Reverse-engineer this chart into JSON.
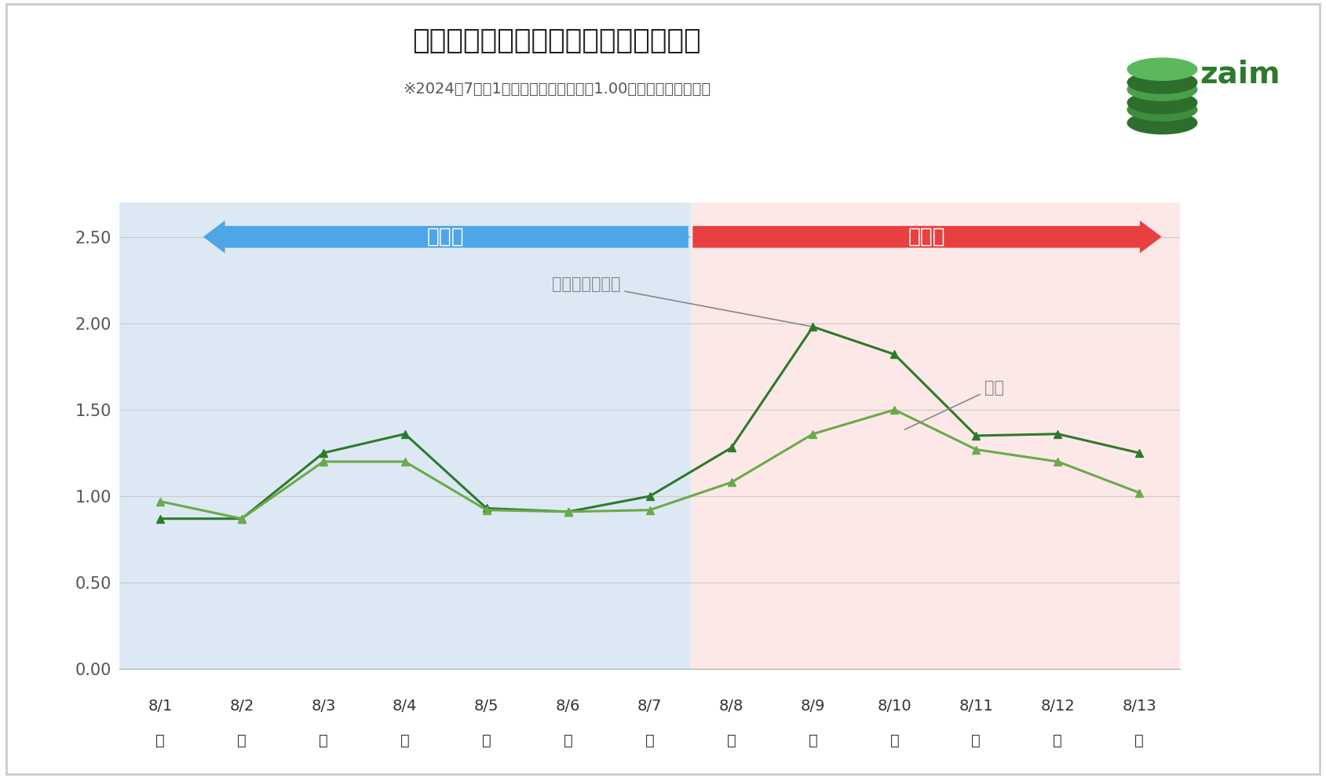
{
  "title": "災害対策関連品目における支出の総額",
  "subtitle": "※2024年7月の1日あたり平均支出額を1.00とした場合の変動比",
  "dates": [
    "8/1",
    "8/2",
    "8/3",
    "8/4",
    "8/5",
    "8/6",
    "8/7",
    "8/8",
    "8/9",
    "8/10",
    "8/11",
    "8/12",
    "8/13"
  ],
  "weekdays": [
    "木",
    "金",
    "土",
    "日",
    "月",
    "火",
    "水",
    "木",
    "金",
    "土",
    "日",
    "祝",
    "火"
  ],
  "series_damage_area": [
    0.87,
    0.87,
    1.25,
    1.36,
    0.93,
    0.91,
    1.0,
    1.28,
    1.98,
    1.82,
    1.35,
    1.36,
    1.25
  ],
  "series_national": [
    0.97,
    0.87,
    1.2,
    1.2,
    0.92,
    0.91,
    0.92,
    1.08,
    1.36,
    1.5,
    1.27,
    1.2,
    1.02
  ],
  "color_damage": "#2d7a2d",
  "color_national": "#6aaa4a",
  "ylim": [
    0.0,
    2.7
  ],
  "yticks": [
    0.0,
    0.5,
    1.0,
    1.5,
    2.0,
    2.5
  ],
  "bg_color_left": "#dde8f5",
  "bg_color_right": "#fde8e8",
  "split_index": 7,
  "arrow_before_label": "発表前",
  "arrow_after_label": "発表後",
  "label_damage": "被害予想エリア",
  "label_national": "全国",
  "arrow_before_color": "#4da6e8",
  "arrow_after_color": "#e84040",
  "title_fontsize": 26,
  "subtitle_fontsize": 14
}
